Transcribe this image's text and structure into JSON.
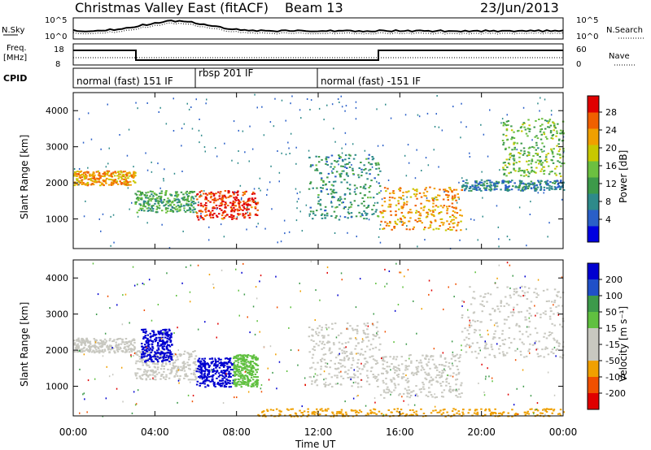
{
  "header": {
    "title": "Christmas Valley East (fitACF)",
    "beam": "Beam 13",
    "date": "23/Jun/2013"
  },
  "panels": {
    "nsky": {
      "label": "N.Sky",
      "ticks": [
        "10^5",
        "10^0"
      ],
      "right_ticks": [
        "10^5",
        "10^0"
      ],
      "right_label": "N.Search"
    },
    "freq": {
      "label_line1": "Freq.",
      "label_line2": "[MHz]",
      "ticks": [
        "18",
        "8"
      ],
      "right_ticks": [
        "60",
        "0"
      ],
      "right_label": "Nave"
    },
    "cpid": {
      "label": "CPID",
      "modes": [
        "normal (fast) 151 IF",
        "rbsp 201 IF",
        "normal (fast) -151 IF"
      ]
    }
  },
  "axes": {
    "xlabel": "Time UT",
    "ylabel": "Slant Range [km]",
    "xticks": [
      "00:00",
      "04:00",
      "08:00",
      "12:00",
      "16:00",
      "20:00",
      "00:00"
    ],
    "yticks": [
      "1000",
      "2000",
      "3000",
      "4000"
    ]
  },
  "colorbars": {
    "power": {
      "label": "Power [dB]",
      "ticks": [
        "28",
        "24",
        "20",
        "16",
        "12",
        "8",
        "4"
      ]
    },
    "velocity": {
      "label": "Velocity [m s⁻¹]",
      "ticks": [
        "200",
        "100",
        "50",
        "15",
        "-15",
        "-50",
        "-100",
        "-200"
      ]
    }
  },
  "colors": {
    "power_scale": [
      "#0000e0",
      "#2a5fc8",
      "#2e8a8a",
      "#3d9a4a",
      "#6cc040",
      "#c8c800",
      "#f0a000",
      "#f06000",
      "#e00000"
    ],
    "velocity_scale": [
      "#e00000",
      "#f05000",
      "#f0a000",
      "#c8c8c0",
      "#c8c8c0",
      "#60c040",
      "#3d9a4a",
      "#2050c8",
      "#0000d0"
    ]
  },
  "chart_data": [
    {
      "type": "heatmap",
      "name": "power",
      "title": "Power [dB]",
      "x_range": [
        0,
        24
      ],
      "ylim": [
        180,
        4500
      ],
      "features": [
        {
          "t0": 0.0,
          "t1": 3.0,
          "r0": 1950,
          "r1": 2350,
          "value": 22
        },
        {
          "t0": 3.0,
          "t1": 6.0,
          "r0": 1200,
          "r1": 1800,
          "value": 12
        },
        {
          "t0": 6.0,
          "t1": 9.0,
          "r0": 1000,
          "r1": 1800,
          "value": 27
        },
        {
          "t0": 11.5,
          "t1": 15.0,
          "r0": 1000,
          "r1": 2800,
          "value": 10
        },
        {
          "t0": 15.0,
          "t1": 19.0,
          "r0": 700,
          "r1": 1900,
          "value": 22
        },
        {
          "t0": 19.0,
          "t1": 24.0,
          "r0": 1800,
          "r1": 2100,
          "value": 8
        },
        {
          "t0": 21.0,
          "t1": 24.0,
          "r0": 2200,
          "r1": 3800,
          "value": 14
        }
      ]
    },
    {
      "type": "heatmap",
      "name": "velocity",
      "title": "Velocity [m s⁻¹]",
      "x_range": [
        0,
        24
      ],
      "ylim": [
        180,
        4500
      ],
      "features": [
        {
          "t0": 0.0,
          "t1": 3.0,
          "r0": 1950,
          "r1": 2350,
          "value": 0
        },
        {
          "t0": 3.0,
          "t1": 6.0,
          "r0": 1200,
          "r1": 2000,
          "value": 0
        },
        {
          "t0": 3.3,
          "t1": 4.8,
          "r0": 1700,
          "r1": 2600,
          "value": 200
        },
        {
          "t0": 6.0,
          "t1": 7.8,
          "r0": 1000,
          "r1": 1800,
          "value": 200
        },
        {
          "t0": 7.8,
          "t1": 9.0,
          "r0": 1000,
          "r1": 1900,
          "value": 60
        },
        {
          "t0": 11.5,
          "t1": 15.0,
          "r0": 1000,
          "r1": 2800,
          "value": 0
        },
        {
          "t0": 15.0,
          "t1": 19.0,
          "r0": 700,
          "r1": 1900,
          "value": 0
        },
        {
          "t0": 19.0,
          "t1": 24.0,
          "r0": 1800,
          "r1": 3800,
          "value": 0
        },
        {
          "t0": 9.0,
          "t1": 24.0,
          "r0": 180,
          "r1": 400,
          "value": -60
        }
      ]
    }
  ]
}
